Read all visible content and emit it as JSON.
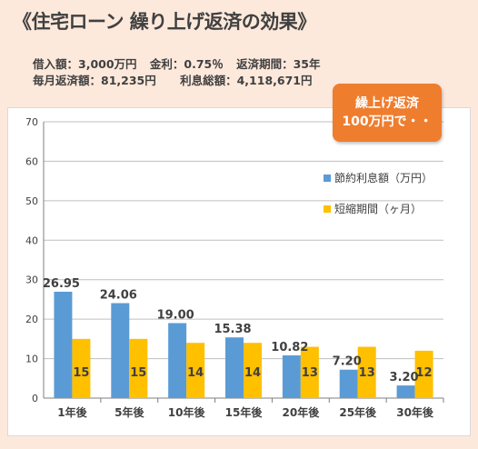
{
  "title": "《住宅ローン 繰り上げ返済の効果》",
  "loan_info": {
    "line1": [
      "借入額：3,000万円",
      "金利：0.75％",
      "返済期間：35年"
    ],
    "line2": [
      "毎月返済額：81,235円",
      "利息総額：4,118,671円"
    ]
  },
  "callout": {
    "line1": "繰上げ返済",
    "line2": "100万円で・・"
  },
  "colors": {
    "savings": "#5b9bd5",
    "period": "#ffc000",
    "callout": "#ef7d2e"
  },
  "chart_data": {
    "type": "bar",
    "categories": [
      "1年後",
      "5年後",
      "10年後",
      "15年後",
      "20年後",
      "25年後",
      "30年後"
    ],
    "series": [
      {
        "name": "節約利息額（万円）",
        "values": [
          26.95,
          24.06,
          19.0,
          15.38,
          10.82,
          7.2,
          3.2
        ],
        "labels": [
          "26.95",
          "24.06",
          "19.00",
          "15.38",
          "10.82",
          "7.20",
          "3.20"
        ]
      },
      {
        "name": "短縮期間（ヶ月）",
        "values": [
          15,
          15,
          14,
          14,
          13,
          13,
          12
        ],
        "labels": [
          "15",
          "15",
          "14",
          "14",
          "13",
          "13",
          "12"
        ]
      }
    ],
    "ylim": [
      0,
      70
    ],
    "yticks": [
      0,
      10,
      20,
      30,
      40,
      50,
      60,
      70
    ],
    "grid": true,
    "legend": "right"
  }
}
